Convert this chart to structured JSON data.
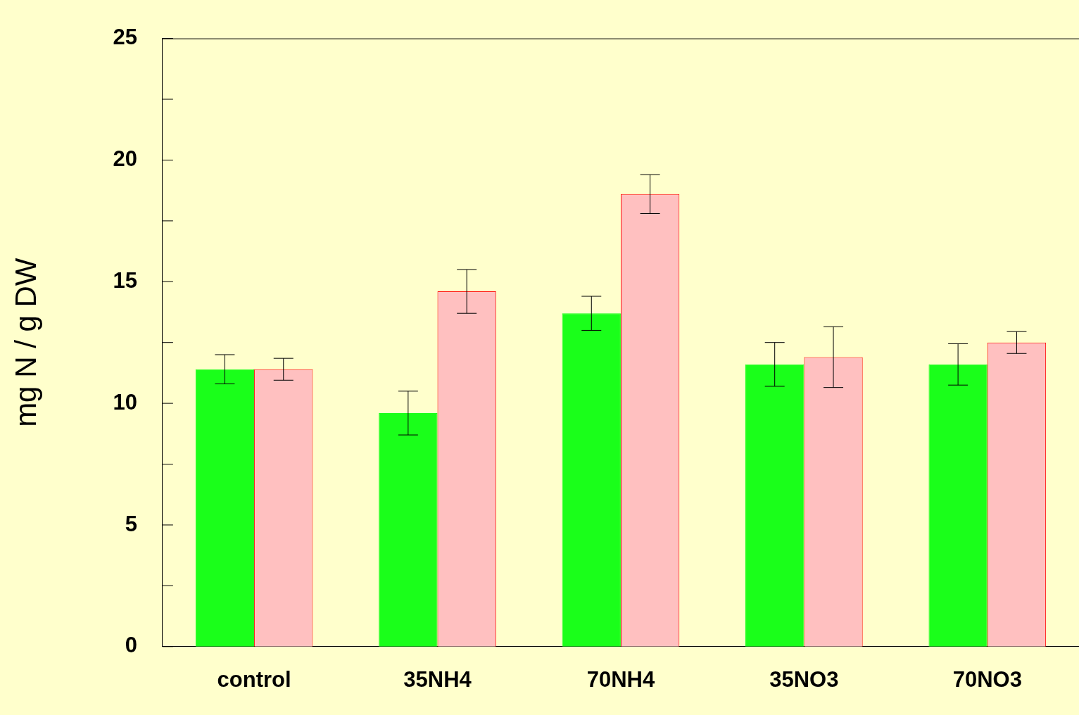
{
  "chart_data": {
    "type": "bar",
    "ylabel": "mg N / g DW",
    "categories": [
      "control",
      "35NH4",
      "70NH4",
      "35NO3",
      "70NO3"
    ],
    "series": [
      {
        "color": "#1aff1a",
        "values": [
          11.4,
          9.6,
          13.7,
          11.6,
          11.6
        ],
        "errors": [
          0.6,
          0.9,
          0.7,
          0.9,
          0.85
        ]
      },
      {
        "color": "#ffc0c0",
        "values": [
          11.4,
          14.6,
          18.6,
          11.9,
          12.5
        ],
        "errors": [
          0.45,
          0.9,
          0.8,
          1.25,
          0.45
        ]
      }
    ],
    "ylim": [
      0,
      25
    ],
    "yticks": [
      0,
      {
        "value": 2.5,
        "label": null
      },
      5,
      {
        "value": 7.5,
        "label": null
      },
      10,
      {
        "value": 12.5,
        "label": null
      },
      15,
      {
        "value": 17.5,
        "label": null
      },
      20,
      {
        "value": 22.5,
        "label": null
      },
      25
    ],
    "grid": false,
    "legend": false
  }
}
